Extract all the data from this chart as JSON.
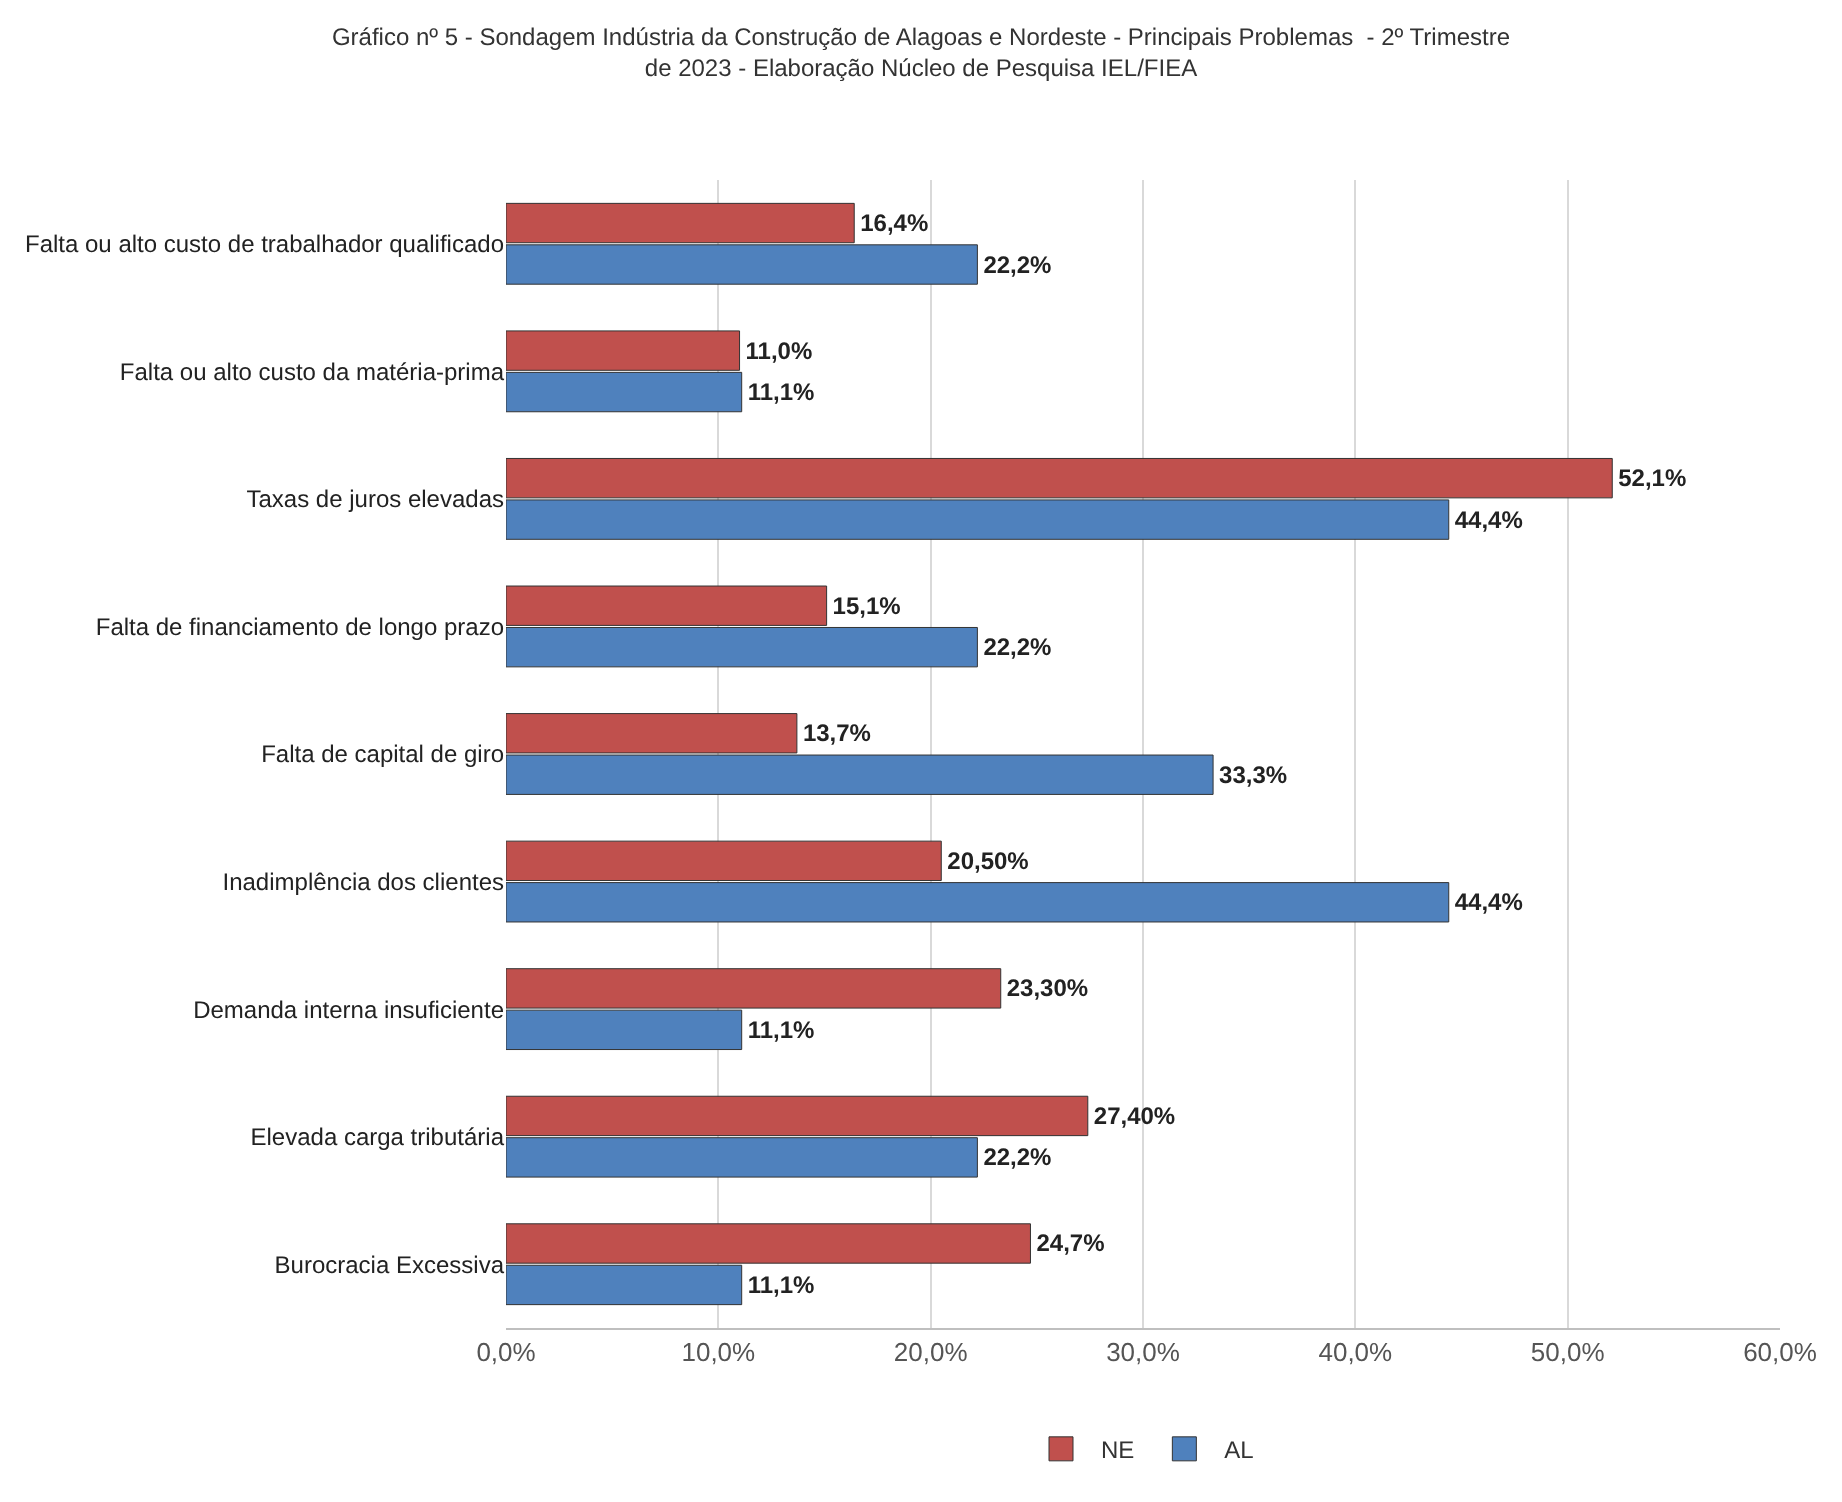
{
  "chart_data": {
    "type": "bar",
    "orientation": "horizontal",
    "title": "Gráfico nº 5 - Sondagem Indústria da Construção de Alagoas e Nordeste - Principais Problemas  - 2º Trimestre\nde 2023 - Elaboração Núcleo de Pesquisa IEL/FIEA",
    "categories": [
      "Falta ou alto custo de trabalhador qualificado",
      "Falta ou alto custo da matéria-prima",
      "Taxas de juros elevadas",
      "Falta de financiamento de longo prazo",
      "Falta de capital de giro",
      "Inadimplência dos clientes",
      "Demanda interna insuficiente",
      "Elevada carga tributária",
      "Burocracia Excessiva"
    ],
    "series": [
      {
        "name": "NE",
        "color": "#c0504d",
        "values": [
          16.4,
          11.0,
          52.1,
          15.1,
          13.7,
          20.5,
          23.3,
          27.4,
          24.7
        ],
        "value_labels": [
          "16,4%",
          "11,0%",
          "52,1%",
          "15,1%",
          "13,7%",
          "20,50%",
          "23,30%",
          "27,40%",
          "24,7%"
        ]
      },
      {
        "name": "AL",
        "color": "#4f81bd",
        "values": [
          22.2,
          11.1,
          44.4,
          22.2,
          33.3,
          44.4,
          11.1,
          22.2,
          11.1
        ],
        "value_labels": [
          "22,2%",
          "11,1%",
          "44,4%",
          "22,2%",
          "33,3%",
          "44,4%",
          "11,1%",
          "22,2%",
          "11,1%"
        ]
      }
    ],
    "xlim": [
      0,
      60
    ],
    "xticks": [
      {
        "value": 0,
        "label": "0,0%"
      },
      {
        "value": 10,
        "label": "10,0%"
      },
      {
        "value": 20,
        "label": "20,0%"
      },
      {
        "value": 30,
        "label": "30,0%"
      },
      {
        "value": 40,
        "label": "40,0%"
      },
      {
        "value": 50,
        "label": "50,0%"
      },
      {
        "value": 60,
        "label": "60,0%"
      }
    ],
    "grid": "x",
    "legend": "bottom"
  }
}
